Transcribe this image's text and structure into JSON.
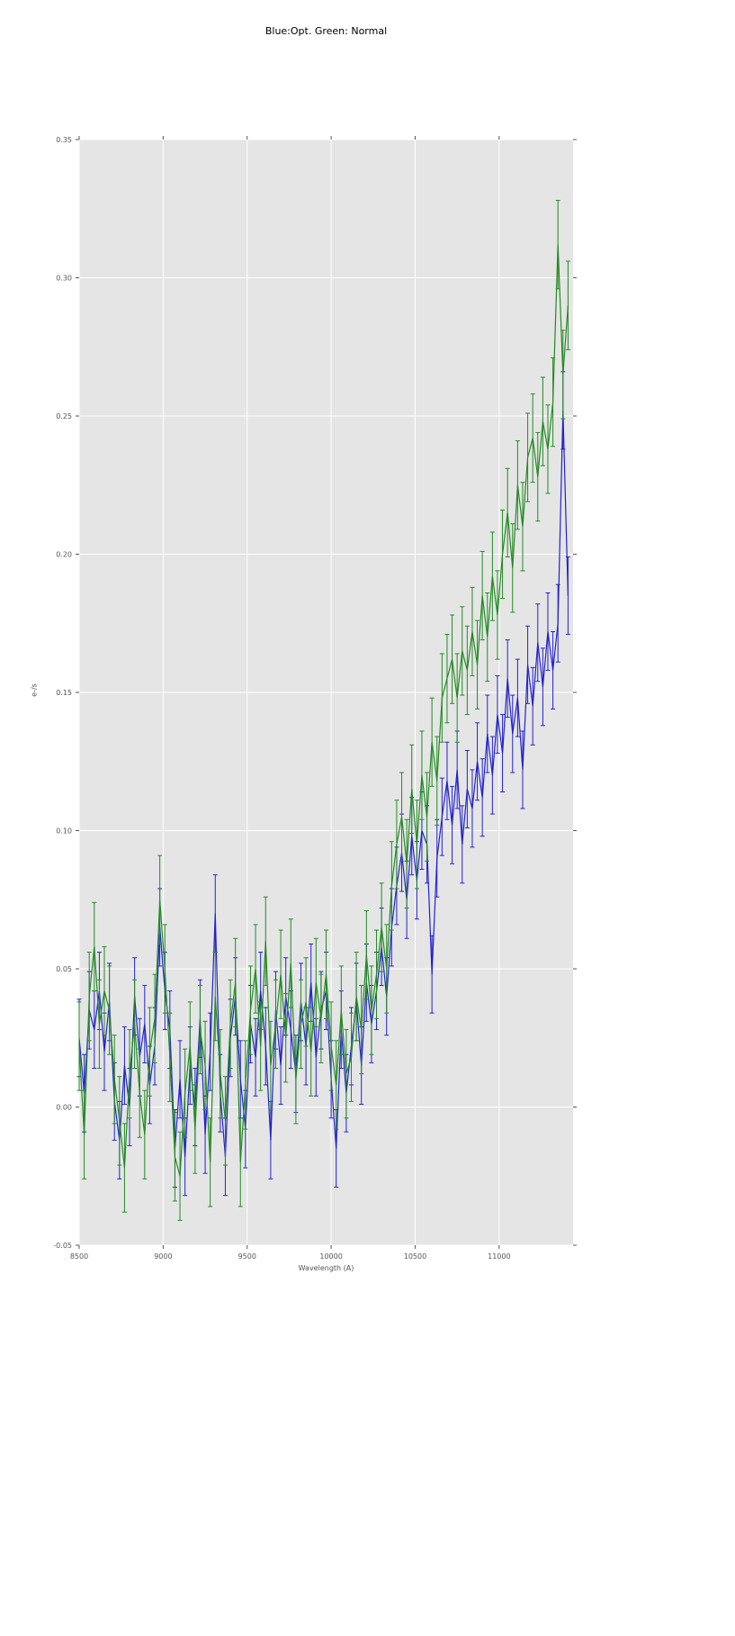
{
  "chart_data": {
    "type": "line",
    "title": "Blue:Opt. Green: Normal",
    "xlabel": "Wavelength (A)",
    "ylabel": "e-/s",
    "xlim": [
      8500,
      11440
    ],
    "ylim": [
      -0.05,
      0.35
    ],
    "xticks": [
      8500,
      9000,
      9500,
      10000,
      10500,
      11000
    ],
    "xtick_labels": [
      "8500",
      "9000",
      "9500",
      "10000",
      "10500",
      "11000"
    ],
    "yticks": [
      -0.05,
      0.0,
      0.05,
      0.1,
      0.15,
      0.2,
      0.25,
      0.3,
      0.35
    ],
    "ytick_labels": [
      "-0.05",
      "0.00",
      "0.05",
      "0.10",
      "0.15",
      "0.20",
      "0.25",
      "0.30",
      "0.35"
    ],
    "grid": true,
    "grid_color": "#ffffff",
    "plot_bg": "#e5e5e5",
    "tick_color": "#555555",
    "legend": "none",
    "error_bars": true,
    "x": [
      8500,
      8530,
      8560,
      8590,
      8620,
      8650,
      8680,
      8710,
      8740,
      8770,
      8800,
      8830,
      8860,
      8890,
      8920,
      8950,
      8980,
      9010,
      9040,
      9070,
      9100,
      9130,
      9160,
      9190,
      9220,
      9250,
      9280,
      9310,
      9340,
      9370,
      9400,
      9430,
      9460,
      9490,
      9520,
      9550,
      9580,
      9610,
      9640,
      9670,
      9700,
      9730,
      9760,
      9790,
      9820,
      9850,
      9880,
      9910,
      9940,
      9970,
      10000,
      10030,
      10060,
      10090,
      10120,
      10150,
      10180,
      10210,
      10240,
      10270,
      10300,
      10330,
      10360,
      10390,
      10420,
      10450,
      10480,
      10510,
      10540,
      10570,
      10600,
      10630,
      10660,
      10690,
      10720,
      10750,
      10780,
      10810,
      10840,
      10870,
      10900,
      10930,
      10960,
      10990,
      11020,
      11050,
      11080,
      11110,
      11140,
      11170,
      11200,
      11230,
      11260,
      11290,
      11320,
      11350,
      11380,
      11410
    ],
    "series": [
      {
        "name": "Opt",
        "color_name": "blue",
        "color": "#2222cc",
        "yerr": 0.014,
        "values": [
          0.025,
          0.005,
          0.035,
          0.028,
          0.042,
          0.02,
          0.038,
          0.002,
          -0.012,
          0.015,
          0.0,
          0.04,
          0.018,
          0.03,
          0.008,
          0.022,
          0.065,
          0.042,
          0.028,
          -0.015,
          0.01,
          -0.018,
          0.015,
          0.0,
          0.032,
          -0.01,
          0.02,
          0.07,
          0.005,
          -0.018,
          0.025,
          0.04,
          0.01,
          -0.008,
          0.03,
          0.018,
          0.042,
          0.022,
          -0.012,
          0.035,
          0.015,
          0.04,
          0.028,
          0.012,
          0.038,
          0.022,
          0.045,
          0.018,
          0.035,
          0.042,
          0.01,
          -0.015,
          0.028,
          0.005,
          0.022,
          0.038,
          0.015,
          0.045,
          0.03,
          0.042,
          0.058,
          0.04,
          0.065,
          0.08,
          0.092,
          0.075,
          0.098,
          0.082,
          0.1,
          0.095,
          0.048,
          0.09,
          0.105,
          0.118,
          0.102,
          0.122,
          0.095,
          0.115,
          0.108,
          0.125,
          0.112,
          0.135,
          0.12,
          0.142,
          0.128,
          0.155,
          0.135,
          0.148,
          0.122,
          0.16,
          0.145,
          0.168,
          0.152,
          0.172,
          0.158,
          0.175,
          0.252,
          0.185
        ]
      },
      {
        "name": "Normal",
        "color_name": "green",
        "color": "#228b22",
        "yerr": 0.016,
        "values": [
          0.022,
          -0.01,
          0.04,
          0.058,
          0.03,
          0.042,
          0.035,
          0.01,
          -0.005,
          -0.022,
          0.012,
          0.03,
          0.005,
          -0.01,
          0.02,
          0.032,
          0.075,
          0.05,
          0.018,
          -0.018,
          -0.025,
          0.005,
          0.022,
          -0.008,
          0.028,
          0.015,
          -0.02,
          0.04,
          0.012,
          -0.005,
          0.03,
          0.045,
          -0.02,
          0.008,
          0.035,
          0.05,
          0.022,
          0.06,
          0.015,
          0.03,
          0.048,
          0.025,
          0.052,
          0.01,
          0.03,
          0.038,
          0.02,
          0.045,
          0.032,
          0.048,
          0.022,
          0.008,
          0.035,
          0.012,
          0.018,
          0.04,
          0.028,
          0.055,
          0.035,
          0.048,
          0.065,
          0.05,
          0.08,
          0.095,
          0.105,
          0.088,
          0.115,
          0.095,
          0.12,
          0.105,
          0.132,
          0.118,
          0.148,
          0.155,
          0.162,
          0.148,
          0.165,
          0.158,
          0.172,
          0.16,
          0.185,
          0.17,
          0.192,
          0.178,
          0.2,
          0.215,
          0.195,
          0.225,
          0.21,
          0.235,
          0.242,
          0.228,
          0.248,
          0.238,
          0.255,
          0.312,
          0.265,
          0.29
        ]
      }
    ]
  }
}
